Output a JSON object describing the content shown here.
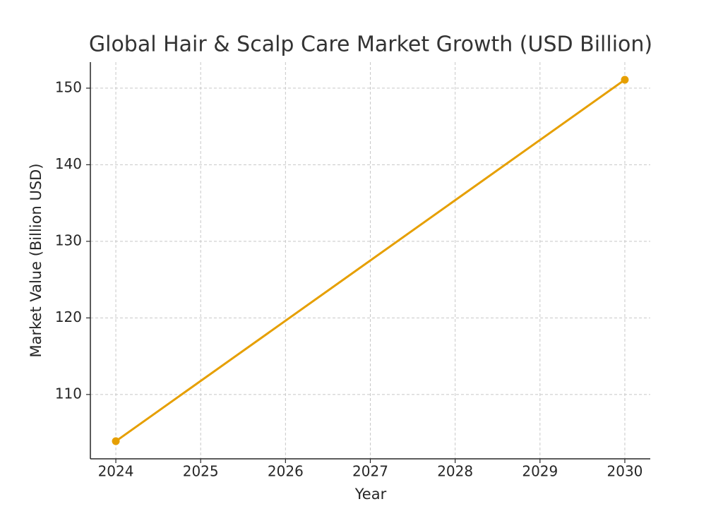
{
  "chart_data": {
    "type": "line",
    "title": "Global Hair & Scalp Care Market Growth (USD Billion)",
    "x_label": "Year",
    "y_label": "Market Value (Billion USD)",
    "x": [
      2024,
      2030
    ],
    "series": [
      {
        "name": "Market Value",
        "color": "#e69f00",
        "values": [
          103.9,
          151.1
        ]
      }
    ],
    "xlim": [
      2023.7,
      2030.3
    ],
    "xticks": [
      2024,
      2025,
      2026,
      2027,
      2028,
      2029,
      2030
    ],
    "ylim": [
      101.6,
      153.4
    ],
    "yticks": [
      110,
      120,
      130,
      140,
      150
    ],
    "grid": true
  }
}
